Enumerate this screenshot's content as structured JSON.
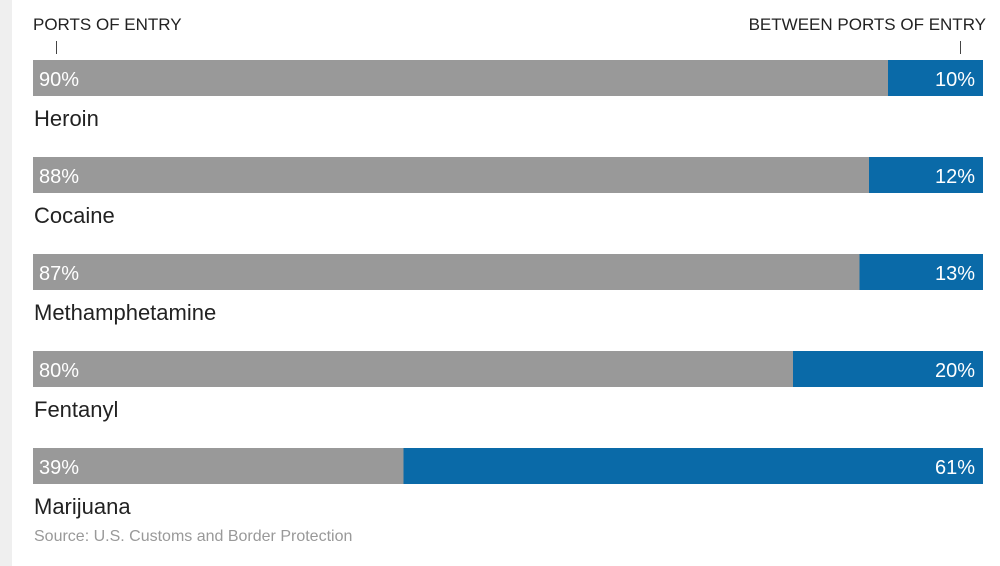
{
  "header": {
    "left_label": "PORTS OF ENTRY",
    "right_label": "BETWEEN PORTS OF ENTRY"
  },
  "source": "Source: U.S. Customs and Border Protection",
  "colors": {
    "ports_of_entry": "#999999",
    "between_ports": "#0a6aa8",
    "text": "#222222",
    "bar_text": "#ffffff"
  },
  "chart_data": {
    "type": "bar",
    "orientation": "horizontal",
    "stacked": true,
    "unit": "%",
    "categories": [
      "Heroin",
      "Cocaine",
      "Methamphetamine",
      "Fentanyl",
      "Marijuana"
    ],
    "series": [
      {
        "name": "PORTS OF ENTRY",
        "values": [
          90,
          88,
          87,
          80,
          39
        ],
        "labels": [
          "90%",
          "88%",
          "87%",
          "80%",
          "39%"
        ]
      },
      {
        "name": "BETWEEN PORTS OF ENTRY",
        "values": [
          10,
          12,
          13,
          20,
          61
        ],
        "labels": [
          "10%",
          "12%",
          "13%",
          "20%",
          "61%"
        ]
      }
    ],
    "xlim": [
      0,
      100
    ],
    "grid": false,
    "legend": "top"
  }
}
